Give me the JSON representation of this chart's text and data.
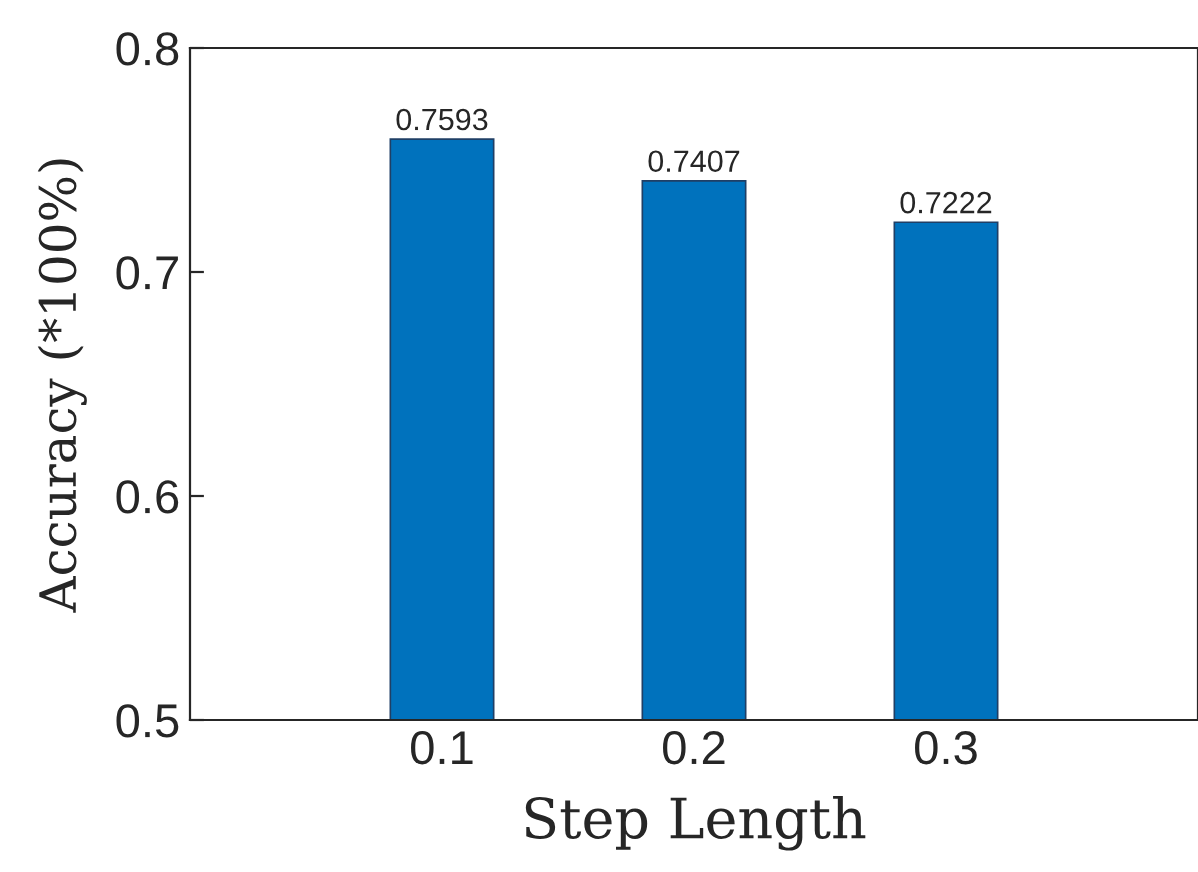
{
  "chart_data": {
    "type": "bar",
    "xlabel": "Step Length",
    "ylabel": "Accuracy (*100%)",
    "categories": [
      "0.1",
      "0.2",
      "0.3"
    ],
    "values": [
      0.7593,
      0.7407,
      0.7222
    ],
    "color": "#0072bd",
    "ylim": [
      0.5,
      0.8
    ],
    "yticks": [
      0.5,
      0.6,
      0.7,
      0.8
    ],
    "data_labels": true,
    "grid": false,
    "legend": false
  }
}
